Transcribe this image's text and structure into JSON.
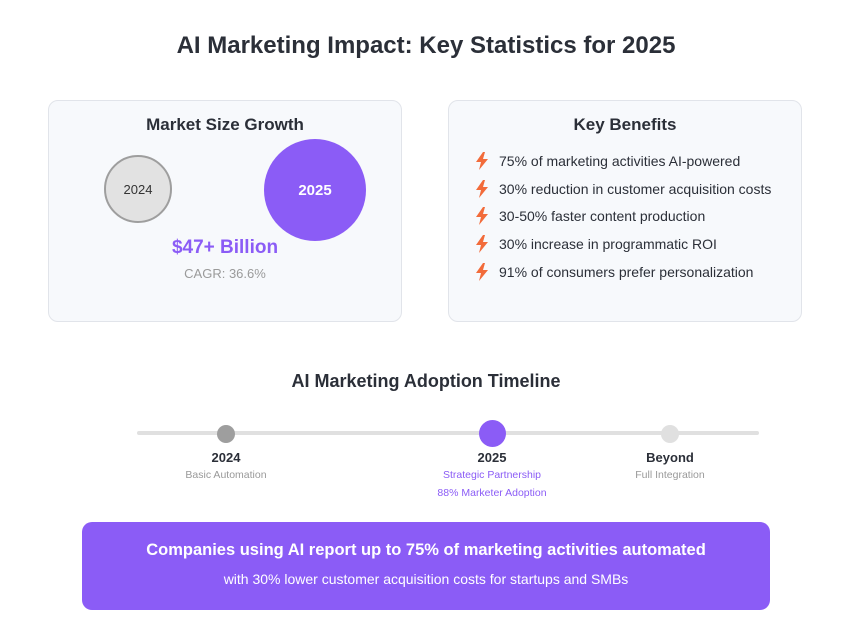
{
  "title": "AI Marketing Impact: Key Statistics for 2025",
  "market": {
    "title": "Market Size Growth",
    "bubble_2024": "2024",
    "bubble_2025": "2025",
    "value": "$47+ Billion",
    "cagr": "CAGR: 36.6%"
  },
  "benefits": {
    "title": "Key Benefits",
    "icon": "lightning-bolt-icon",
    "icon_color": "#f26b3a",
    "items": [
      "75% of marketing activities AI-powered",
      "30% reduction in customer acquisition costs",
      "30-50% faster content production",
      "30% increase in programmatic ROI",
      "91% of consumers prefer personalization"
    ]
  },
  "timeline": {
    "title": "AI Marketing Adoption Timeline",
    "milestones": [
      {
        "year": "2024",
        "desc": "Basic Automation"
      },
      {
        "year": "2025",
        "desc": "Strategic Partnership",
        "sub": "88% Marketer Adoption"
      },
      {
        "year": "Beyond",
        "desc": "Full Integration"
      }
    ]
  },
  "banner": {
    "headline": "Companies using AI report up to 75% of marketing activities automated",
    "sub": "with 30% lower customer acquisition costs for startups and SMBs"
  },
  "colors": {
    "accent": "#8b5cf6",
    "muted": "#9e9e9e"
  }
}
